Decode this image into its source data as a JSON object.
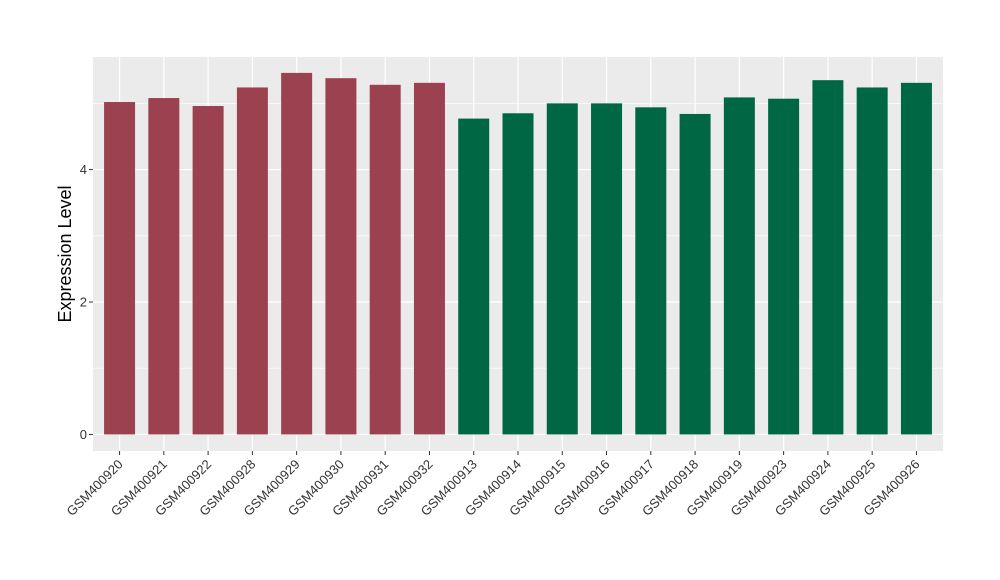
{
  "chart_data": {
    "type": "bar",
    "ylabel": "Expression Level",
    "ylim": [
      -0.25,
      5.7
    ],
    "yticks": [
      0,
      2,
      4
    ],
    "grid": true,
    "categories": [
      "GSM400920",
      "GSM400921",
      "GSM400922",
      "GSM400928",
      "GSM400929",
      "GSM400930",
      "GSM400931",
      "GSM400932",
      "GSM400913",
      "GSM400914",
      "GSM400915",
      "GSM400916",
      "GSM400917",
      "GSM400918",
      "GSM400919",
      "GSM400923",
      "GSM400924",
      "GSM400925",
      "GSM400926"
    ],
    "values": [
      5.02,
      5.08,
      4.96,
      5.24,
      5.46,
      5.38,
      5.28,
      5.31,
      4.77,
      4.85,
      5.0,
      5.0,
      4.94,
      4.84,
      5.09,
      5.07,
      5.35,
      5.24,
      5.31
    ],
    "groups": [
      0,
      0,
      0,
      0,
      0,
      0,
      0,
      0,
      1,
      1,
      1,
      1,
      1,
      1,
      1,
      1,
      1,
      1,
      1
    ],
    "group_colors": [
      "#9b414f",
      "#006744"
    ],
    "panel_background": "#ebebeb",
    "grid_color": "#ffffff"
  }
}
